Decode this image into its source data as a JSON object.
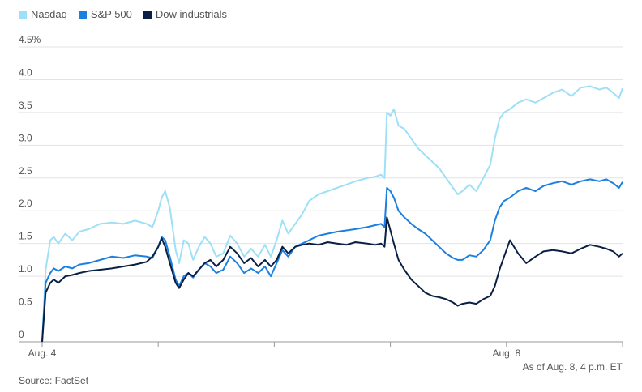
{
  "legend": [
    {
      "label": "Nasdaq",
      "color": "#9ee0f5"
    },
    {
      "label": "S&P 500",
      "color": "#1a7fe0"
    },
    {
      "label": "Dow industrials",
      "color": "#0a1f44"
    }
  ],
  "footer": {
    "source": "Source: FactSet",
    "as_of": "As of Aug. 8, 4 p.m. ET"
  },
  "chart_data": {
    "type": "line",
    "title": "",
    "xlabel": "",
    "ylabel": "",
    "ylim": [
      0,
      4.5
    ],
    "yticks": [
      0,
      0.5,
      1.0,
      1.5,
      2.0,
      2.5,
      3.0,
      3.5,
      4.0,
      4.5
    ],
    "ytick_labels": [
      "0",
      "0.5",
      "1.0",
      "1.5",
      "2.0",
      "2.5",
      "3.0",
      "3.5",
      "4.0",
      "4.5%"
    ],
    "xlim": [
      0,
      5
    ],
    "xticks": [
      0,
      1,
      2,
      3,
      4,
      5
    ],
    "xtick_labels": [
      "Aug. 4",
      "",
      "",
      "",
      "Aug. 8",
      ""
    ],
    "grid": true,
    "legend_position": "top-left",
    "series": [
      {
        "name": "Nasdaq",
        "color": "#9ee0f5",
        "points": [
          [
            0,
            0.0
          ],
          [
            0.03,
            1.1
          ],
          [
            0.07,
            1.55
          ],
          [
            0.1,
            1.6
          ],
          [
            0.14,
            1.5
          ],
          [
            0.2,
            1.65
          ],
          [
            0.26,
            1.55
          ],
          [
            0.32,
            1.68
          ],
          [
            0.4,
            1.72
          ],
          [
            0.5,
            1.8
          ],
          [
            0.6,
            1.82
          ],
          [
            0.7,
            1.8
          ],
          [
            0.8,
            1.85
          ],
          [
            0.9,
            1.8
          ],
          [
            0.95,
            1.75
          ],
          [
            1.0,
            2.0
          ],
          [
            1.03,
            2.2
          ],
          [
            1.06,
            2.3
          ],
          [
            1.1,
            2.05
          ],
          [
            1.15,
            1.4
          ],
          [
            1.18,
            1.2
          ],
          [
            1.22,
            1.55
          ],
          [
            1.26,
            1.5
          ],
          [
            1.3,
            1.25
          ],
          [
            1.35,
            1.45
          ],
          [
            1.4,
            1.6
          ],
          [
            1.45,
            1.5
          ],
          [
            1.5,
            1.3
          ],
          [
            1.56,
            1.35
          ],
          [
            1.62,
            1.62
          ],
          [
            1.68,
            1.5
          ],
          [
            1.74,
            1.3
          ],
          [
            1.8,
            1.42
          ],
          [
            1.86,
            1.3
          ],
          [
            1.92,
            1.48
          ],
          [
            1.97,
            1.3
          ],
          [
            2.02,
            1.55
          ],
          [
            2.07,
            1.85
          ],
          [
            2.12,
            1.65
          ],
          [
            2.18,
            1.8
          ],
          [
            2.24,
            1.95
          ],
          [
            2.3,
            2.15
          ],
          [
            2.38,
            2.25
          ],
          [
            2.46,
            2.3
          ],
          [
            2.54,
            2.35
          ],
          [
            2.62,
            2.4
          ],
          [
            2.7,
            2.45
          ],
          [
            2.8,
            2.5
          ],
          [
            2.87,
            2.52
          ],
          [
            2.92,
            2.55
          ],
          [
            2.95,
            2.5
          ],
          [
            2.97,
            3.5
          ],
          [
            3.0,
            3.45
          ],
          [
            3.03,
            3.55
          ],
          [
            3.07,
            3.3
          ],
          [
            3.12,
            3.25
          ],
          [
            3.18,
            3.1
          ],
          [
            3.24,
            2.95
          ],
          [
            3.3,
            2.85
          ],
          [
            3.36,
            2.75
          ],
          [
            3.42,
            2.65
          ],
          [
            3.48,
            2.5
          ],
          [
            3.54,
            2.35
          ],
          [
            3.58,
            2.25
          ],
          [
            3.62,
            2.3
          ],
          [
            3.68,
            2.4
          ],
          [
            3.74,
            2.3
          ],
          [
            3.8,
            2.5
          ],
          [
            3.86,
            2.7
          ],
          [
            3.9,
            3.1
          ],
          [
            3.94,
            3.4
          ],
          [
            3.98,
            3.5
          ],
          [
            4.03,
            3.55
          ],
          [
            4.1,
            3.65
          ],
          [
            4.17,
            3.7
          ],
          [
            4.25,
            3.65
          ],
          [
            4.32,
            3.72
          ],
          [
            4.4,
            3.8
          ],
          [
            4.48,
            3.85
          ],
          [
            4.56,
            3.75
          ],
          [
            4.64,
            3.88
          ],
          [
            4.72,
            3.9
          ],
          [
            4.8,
            3.85
          ],
          [
            4.86,
            3.88
          ],
          [
            4.92,
            3.8
          ],
          [
            4.97,
            3.72
          ],
          [
            5.0,
            3.87
          ]
        ]
      },
      {
        "name": "S&P 500",
        "color": "#1a7fe0",
        "points": [
          [
            0,
            0.0
          ],
          [
            0.03,
            0.9
          ],
          [
            0.07,
            1.05
          ],
          [
            0.1,
            1.12
          ],
          [
            0.14,
            1.08
          ],
          [
            0.2,
            1.15
          ],
          [
            0.26,
            1.12
          ],
          [
            0.32,
            1.18
          ],
          [
            0.4,
            1.2
          ],
          [
            0.5,
            1.25
          ],
          [
            0.6,
            1.3
          ],
          [
            0.7,
            1.28
          ],
          [
            0.8,
            1.32
          ],
          [
            0.9,
            1.3
          ],
          [
            0.95,
            1.28
          ],
          [
            1.0,
            1.45
          ],
          [
            1.03,
            1.6
          ],
          [
            1.06,
            1.55
          ],
          [
            1.1,
            1.3
          ],
          [
            1.15,
            0.95
          ],
          [
            1.18,
            0.85
          ],
          [
            1.22,
            1.0
          ],
          [
            1.26,
            1.05
          ],
          [
            1.3,
            0.98
          ],
          [
            1.35,
            1.1
          ],
          [
            1.4,
            1.2
          ],
          [
            1.45,
            1.15
          ],
          [
            1.5,
            1.05
          ],
          [
            1.56,
            1.1
          ],
          [
            1.62,
            1.3
          ],
          [
            1.68,
            1.2
          ],
          [
            1.74,
            1.05
          ],
          [
            1.8,
            1.12
          ],
          [
            1.86,
            1.05
          ],
          [
            1.92,
            1.15
          ],
          [
            1.97,
            1.0
          ],
          [
            2.02,
            1.2
          ],
          [
            2.07,
            1.4
          ],
          [
            2.12,
            1.3
          ],
          [
            2.18,
            1.45
          ],
          [
            2.24,
            1.5
          ],
          [
            2.3,
            1.55
          ],
          [
            2.38,
            1.62
          ],
          [
            2.46,
            1.65
          ],
          [
            2.54,
            1.68
          ],
          [
            2.62,
            1.7
          ],
          [
            2.7,
            1.72
          ],
          [
            2.8,
            1.75
          ],
          [
            2.87,
            1.78
          ],
          [
            2.92,
            1.8
          ],
          [
            2.95,
            1.75
          ],
          [
            2.97,
            2.35
          ],
          [
            3.0,
            2.3
          ],
          [
            3.03,
            2.2
          ],
          [
            3.07,
            2.0
          ],
          [
            3.12,
            1.9
          ],
          [
            3.18,
            1.8
          ],
          [
            3.24,
            1.72
          ],
          [
            3.3,
            1.65
          ],
          [
            3.36,
            1.55
          ],
          [
            3.42,
            1.45
          ],
          [
            3.48,
            1.35
          ],
          [
            3.54,
            1.28
          ],
          [
            3.58,
            1.25
          ],
          [
            3.62,
            1.25
          ],
          [
            3.68,
            1.32
          ],
          [
            3.74,
            1.3
          ],
          [
            3.8,
            1.4
          ],
          [
            3.86,
            1.55
          ],
          [
            3.9,
            1.85
          ],
          [
            3.94,
            2.05
          ],
          [
            3.98,
            2.15
          ],
          [
            4.03,
            2.2
          ],
          [
            4.1,
            2.3
          ],
          [
            4.17,
            2.35
          ],
          [
            4.25,
            2.3
          ],
          [
            4.32,
            2.38
          ],
          [
            4.4,
            2.42
          ],
          [
            4.48,
            2.45
          ],
          [
            4.56,
            2.4
          ],
          [
            4.64,
            2.45
          ],
          [
            4.72,
            2.48
          ],
          [
            4.8,
            2.45
          ],
          [
            4.86,
            2.48
          ],
          [
            4.92,
            2.42
          ],
          [
            4.97,
            2.35
          ],
          [
            5.0,
            2.44
          ]
        ]
      },
      {
        "name": "Dow industrials",
        "color": "#0a1f44",
        "points": [
          [
            0,
            0.0
          ],
          [
            0.03,
            0.75
          ],
          [
            0.07,
            0.9
          ],
          [
            0.1,
            0.95
          ],
          [
            0.14,
            0.9
          ],
          [
            0.2,
            1.0
          ],
          [
            0.26,
            1.02
          ],
          [
            0.32,
            1.05
          ],
          [
            0.4,
            1.08
          ],
          [
            0.5,
            1.1
          ],
          [
            0.6,
            1.12
          ],
          [
            0.7,
            1.15
          ],
          [
            0.8,
            1.18
          ],
          [
            0.9,
            1.22
          ],
          [
            0.95,
            1.3
          ],
          [
            1.0,
            1.45
          ],
          [
            1.03,
            1.58
          ],
          [
            1.06,
            1.45
          ],
          [
            1.1,
            1.2
          ],
          [
            1.15,
            0.9
          ],
          [
            1.18,
            0.82
          ],
          [
            1.22,
            0.95
          ],
          [
            1.26,
            1.05
          ],
          [
            1.3,
            1.0
          ],
          [
            1.35,
            1.1
          ],
          [
            1.4,
            1.2
          ],
          [
            1.45,
            1.25
          ],
          [
            1.5,
            1.15
          ],
          [
            1.56,
            1.25
          ],
          [
            1.62,
            1.45
          ],
          [
            1.68,
            1.35
          ],
          [
            1.74,
            1.2
          ],
          [
            1.8,
            1.28
          ],
          [
            1.86,
            1.15
          ],
          [
            1.92,
            1.25
          ],
          [
            1.97,
            1.15
          ],
          [
            2.02,
            1.25
          ],
          [
            2.07,
            1.45
          ],
          [
            2.12,
            1.35
          ],
          [
            2.18,
            1.45
          ],
          [
            2.24,
            1.48
          ],
          [
            2.3,
            1.5
          ],
          [
            2.38,
            1.48
          ],
          [
            2.46,
            1.52
          ],
          [
            2.54,
            1.5
          ],
          [
            2.62,
            1.48
          ],
          [
            2.7,
            1.52
          ],
          [
            2.8,
            1.5
          ],
          [
            2.87,
            1.48
          ],
          [
            2.92,
            1.5
          ],
          [
            2.95,
            1.45
          ],
          [
            2.97,
            1.9
          ],
          [
            3.0,
            1.7
          ],
          [
            3.03,
            1.5
          ],
          [
            3.07,
            1.25
          ],
          [
            3.12,
            1.1
          ],
          [
            3.18,
            0.95
          ],
          [
            3.24,
            0.85
          ],
          [
            3.3,
            0.75
          ],
          [
            3.36,
            0.7
          ],
          [
            3.42,
            0.68
          ],
          [
            3.48,
            0.65
          ],
          [
            3.54,
            0.6
          ],
          [
            3.58,
            0.55
          ],
          [
            3.62,
            0.58
          ],
          [
            3.68,
            0.6
          ],
          [
            3.74,
            0.58
          ],
          [
            3.8,
            0.65
          ],
          [
            3.86,
            0.7
          ],
          [
            3.9,
            0.85
          ],
          [
            3.94,
            1.1
          ],
          [
            3.98,
            1.3
          ],
          [
            4.03,
            1.55
          ],
          [
            4.1,
            1.35
          ],
          [
            4.17,
            1.2
          ],
          [
            4.25,
            1.3
          ],
          [
            4.32,
            1.38
          ],
          [
            4.4,
            1.4
          ],
          [
            4.48,
            1.38
          ],
          [
            4.56,
            1.35
          ],
          [
            4.64,
            1.42
          ],
          [
            4.72,
            1.48
          ],
          [
            4.8,
            1.45
          ],
          [
            4.86,
            1.42
          ],
          [
            4.92,
            1.38
          ],
          [
            4.97,
            1.3
          ],
          [
            5.0,
            1.35
          ]
        ]
      }
    ]
  }
}
